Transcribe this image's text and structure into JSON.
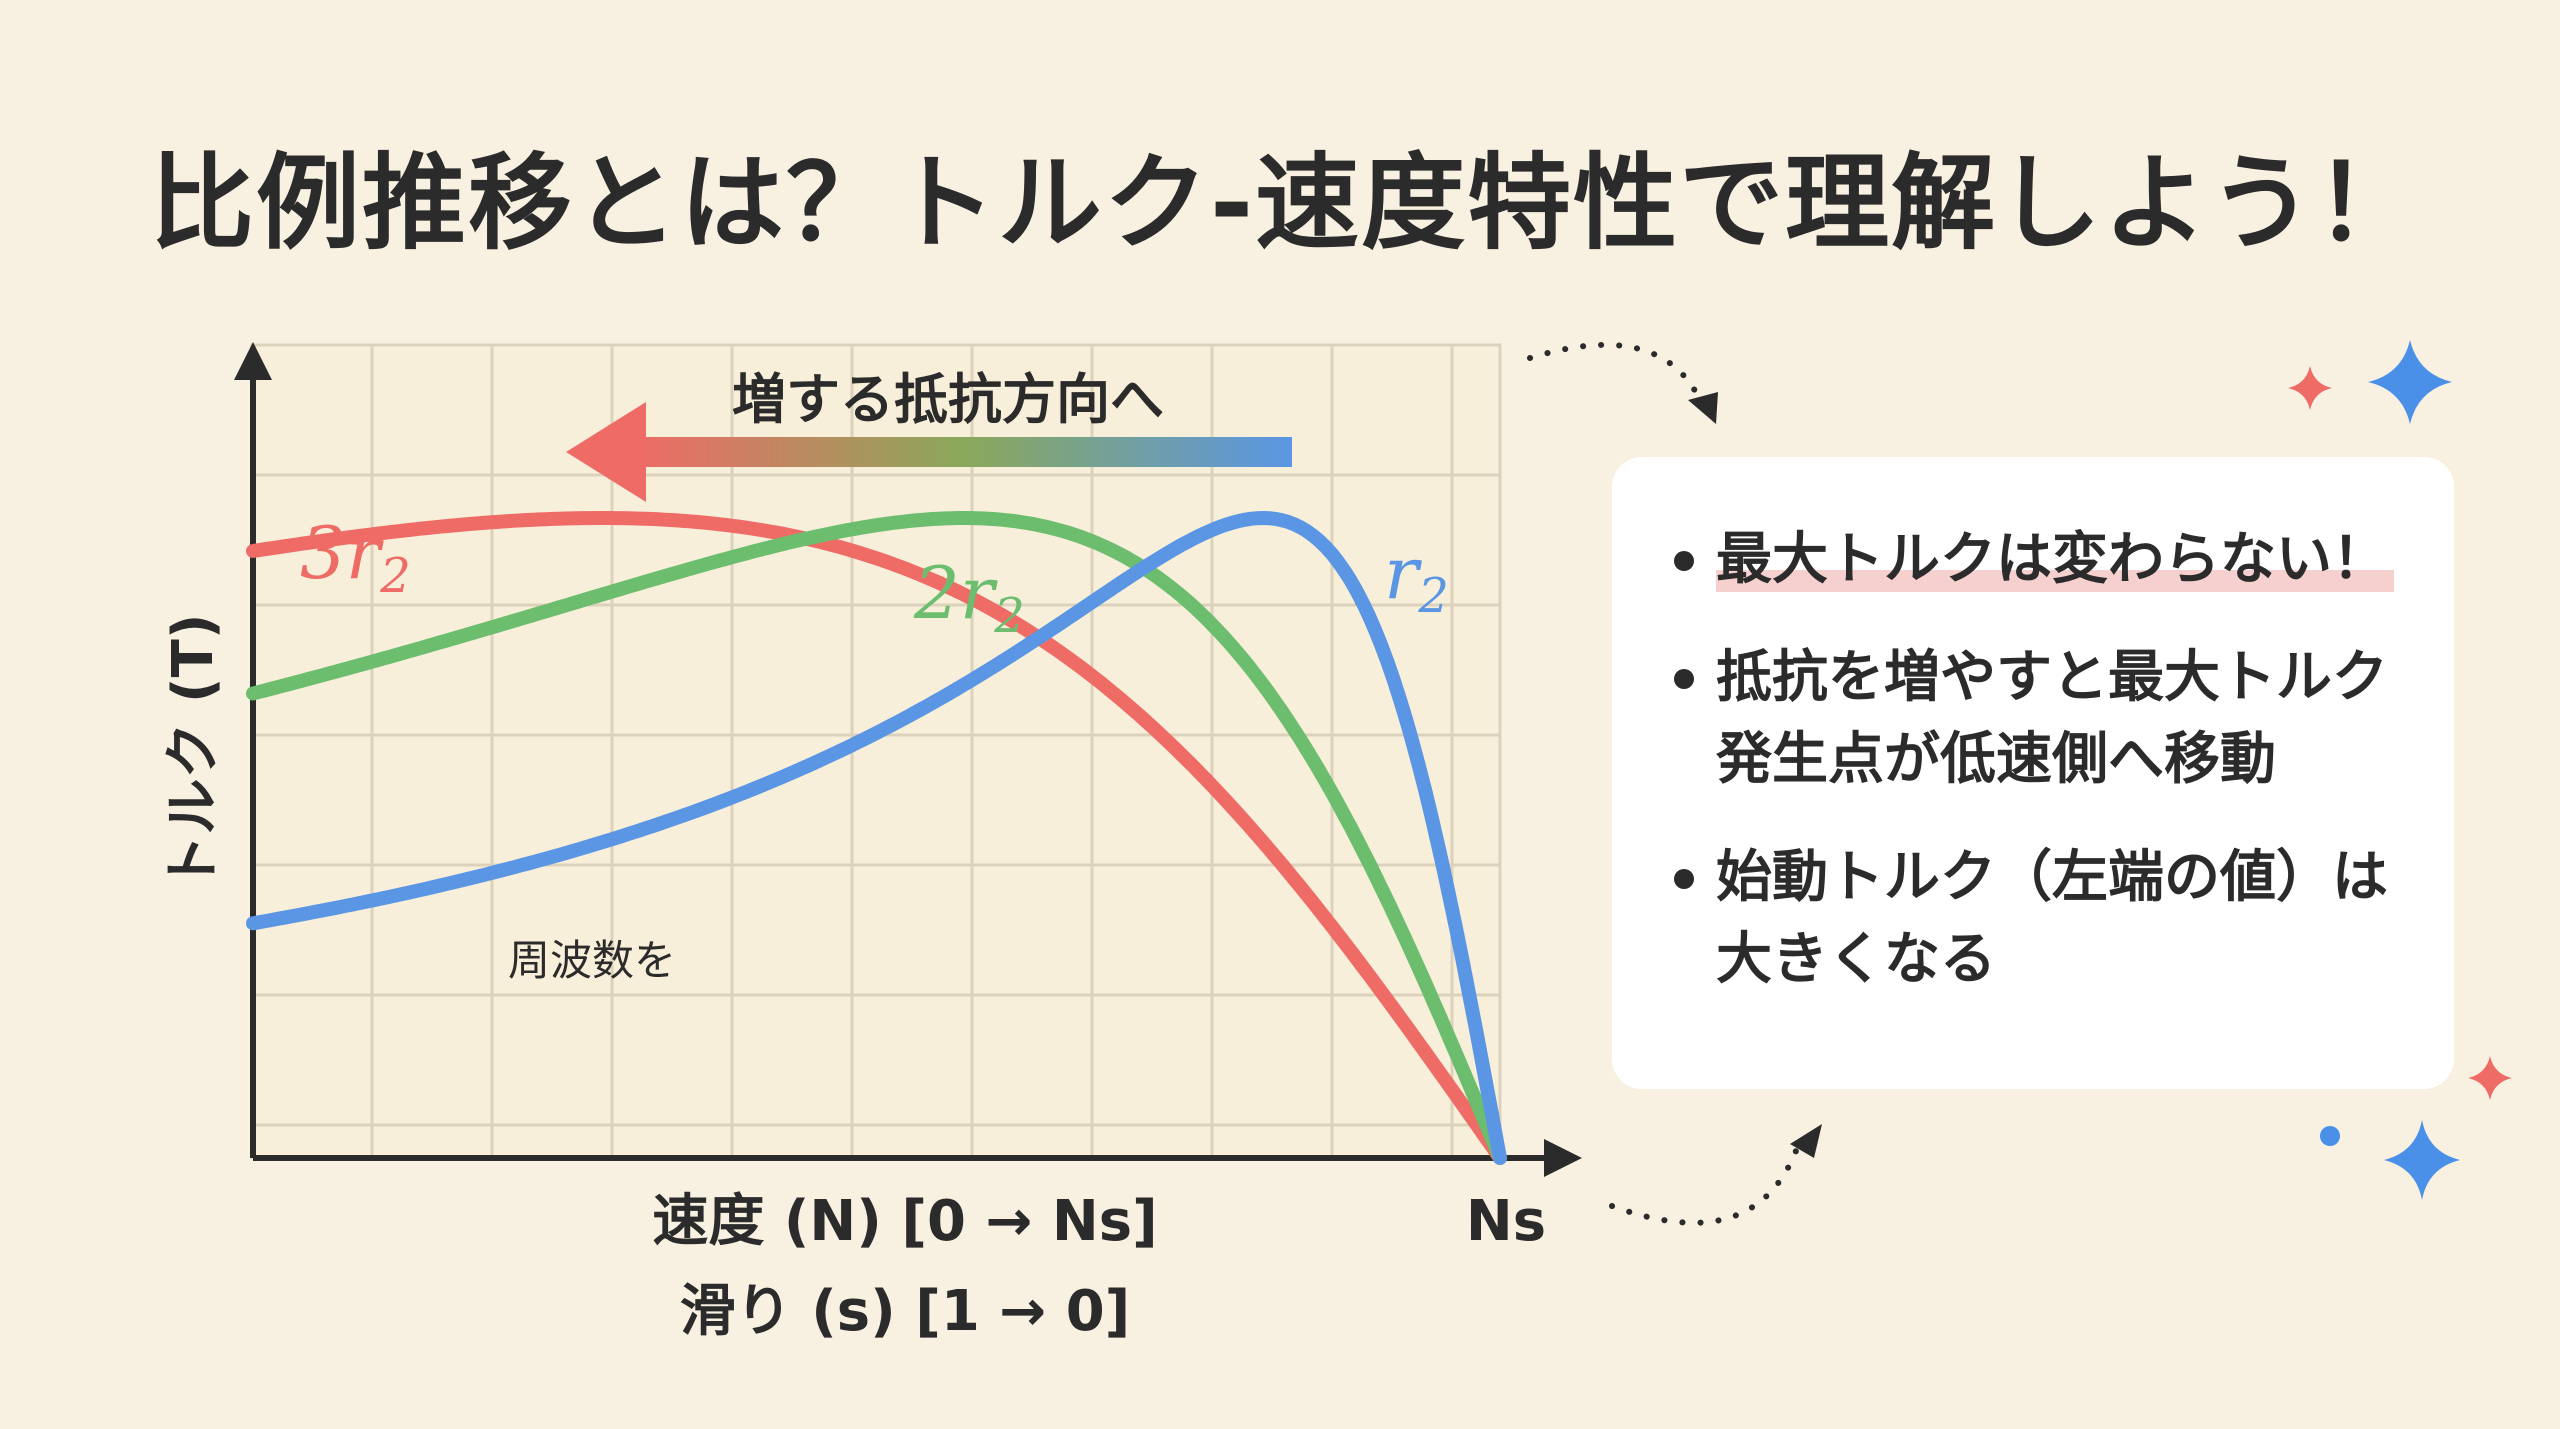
{
  "title": "比例推移とは？トルク-速度特性で理解しよう！",
  "arrow_label": "増する抵抗方向へ",
  "annotation": "周波数を",
  "axes": {
    "ylabel": "トルク (T)",
    "xlabel_line1": "速度 (N) [0 → Ns]",
    "xlabel_line2": "滑り (s) [1 → 0]",
    "x_end_label": "Ns"
  },
  "curves": [
    {
      "name": "3r",
      "subscript": "2",
      "color": "#ee6b66",
      "peak_speed": 0.28
    },
    {
      "name": "2r",
      "subscript": "2",
      "color": "#6dbd6f",
      "peak_speed": 0.57
    },
    {
      "name": "r",
      "subscript": "2",
      "color": "#5a96e4",
      "peak_speed": 0.81
    }
  ],
  "points": [
    {
      "text": "最大トルクは変わらない！",
      "highlight": true
    },
    {
      "text": "抵抗を増やすと最大トルク発生点が低速側へ移動",
      "highlight": false
    },
    {
      "text": "始動トルク（左端の値）は大きくなる",
      "highlight": false
    }
  ],
  "colors": {
    "background": "#f8f1e1",
    "card": "#ffffff",
    "highlight": "#f6cfcf",
    "sparkle_blue": "#4a8fe8",
    "sparkle_red": "#ee6b66"
  }
}
